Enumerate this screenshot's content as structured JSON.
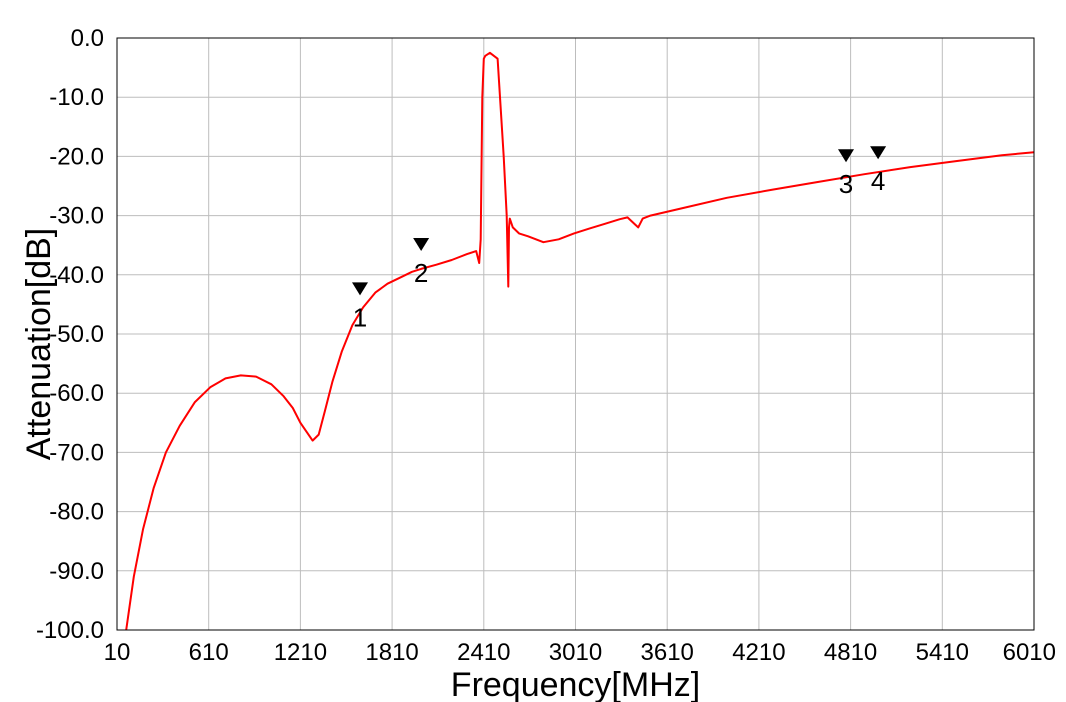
{
  "chart_data": {
    "type": "line",
    "title": "",
    "xlabel": "Frequency[MHz]",
    "ylabel": "Attenuation[dB]",
    "xlim": [
      10,
      6010
    ],
    "ylim": [
      -100,
      0
    ],
    "x_ticks": [
      10,
      610,
      1210,
      1810,
      2410,
      3010,
      3610,
      4210,
      4810,
      5410,
      6010
    ],
    "x_tick_labels": [
      "10",
      "610",
      "1210",
      "1810",
      "2410",
      "3010",
      "3610",
      "4210",
      "4810",
      "5410",
      "6010"
    ],
    "y_ticks": [
      0,
      -10,
      -20,
      -30,
      -40,
      -50,
      -60,
      -70,
      -80,
      -90,
      -100
    ],
    "y_tick_labels": [
      "0.0",
      "-10.0",
      "-20.0",
      "-30.0",
      "-40.0",
      "-50.0",
      "-60.0",
      "-70.0",
      "-80.0",
      "-90.0",
      "-100.0"
    ],
    "grid": true,
    "colors": {
      "trace": "#ff0000",
      "grid": "#bdbdbd",
      "frame": "#000000",
      "marker": "#000000"
    },
    "series": [
      {
        "x": [
          70,
          120,
          180,
          250,
          330,
          420,
          520,
          620,
          720,
          820,
          920,
          1020,
          1100,
          1160,
          1210,
          1250,
          1290,
          1330,
          1370,
          1420,
          1480,
          1550,
          1620,
          1700,
          1780,
          1860,
          1940,
          2000,
          2100,
          2200,
          2300,
          2360,
          2380,
          2390,
          2400,
          2410,
          2420,
          2450,
          2500,
          2540,
          2560,
          2570,
          2575,
          2580,
          2600,
          2640,
          2700,
          2800,
          2900,
          3000,
          3100,
          3200,
          3300,
          3350,
          3400,
          3420,
          3450,
          3500,
          3700,
          4000,
          4300,
          4600,
          4900,
          5200,
          5500,
          5800,
          6010
        ],
        "y": [
          -100,
          -91,
          -83,
          -76,
          -70,
          -65.5,
          -61.5,
          -59,
          -57.5,
          -57,
          -57.2,
          -58.5,
          -60.5,
          -62.5,
          -65,
          -66.5,
          -68,
          -67,
          -63,
          -58,
          -53,
          -48.5,
          -45.5,
          -43,
          -41.5,
          -40.5,
          -39.5,
          -39,
          -38.3,
          -37.5,
          -36.5,
          -36,
          -38,
          -34,
          -10,
          -3.5,
          -3,
          -2.5,
          -3.5,
          -20,
          -30,
          -42,
          -32,
          -30.5,
          -32,
          -33,
          -33.5,
          -34.5,
          -34,
          -33,
          -32.2,
          -31.4,
          -30.6,
          -30.3,
          -31.5,
          -32,
          -30.5,
          -30,
          -28.8,
          -27,
          -25.6,
          -24.3,
          -23,
          -21.8,
          -20.8,
          -19.8,
          -19.3
        ]
      }
    ],
    "markers": [
      {
        "label": "1",
        "x": 1600,
        "y": -45
      },
      {
        "label": "2",
        "x": 2000,
        "y": -37.5
      },
      {
        "label": "3",
        "x": 4780,
        "y": -22.5
      },
      {
        "label": "4",
        "x": 4990,
        "y": -22
      }
    ]
  }
}
